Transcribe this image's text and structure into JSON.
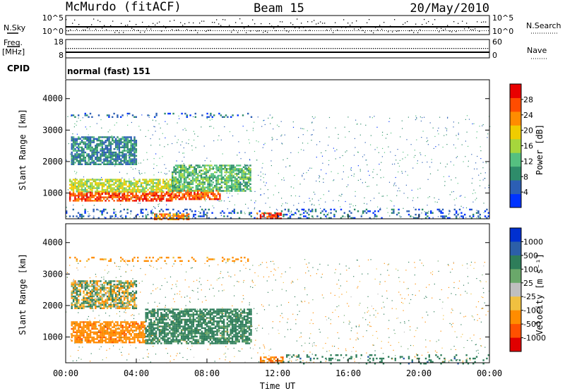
{
  "header": {
    "station": "McMurdo (fitACF)",
    "beam": "Beam 15",
    "date": "20/May/2010",
    "cpid_label": "CPID",
    "cpid_value": "normal (fast) 151"
  },
  "top_panels": {
    "nsky": {
      "label": "N.Sky",
      "ticks": [
        "10^5",
        "10^0"
      ]
    },
    "nsearch": {
      "label": "N.Search",
      "ticks": [
        "10^5",
        "10^0"
      ]
    },
    "freq": {
      "label_line1": "Freq.",
      "label_line2": "[MHz]",
      "ticks": [
        "18",
        "8"
      ]
    },
    "nave": {
      "label": "Nave",
      "ticks": [
        "60",
        "0"
      ]
    }
  },
  "chart_data": [
    {
      "type": "heatmap",
      "quantity": "power",
      "ylabel": "Slant Range [km]",
      "ylim": [
        180,
        4600
      ],
      "yticks": [
        "1000",
        "2000",
        "3000",
        "4000"
      ],
      "colorbar_label": "Power [dB]",
      "colorbar_ticks": [
        "4",
        "8",
        "12",
        "16",
        "20",
        "24",
        "28"
      ],
      "colorbar_range": [
        0,
        32
      ],
      "colorbar_colors": [
        "#0033ff",
        "#2c5fb4",
        "#2e8c6a",
        "#55c080",
        "#a6d63c",
        "#f0cc00",
        "#ff8c00",
        "#ff4c00",
        "#e80000"
      ],
      "regions": [
        {
          "t": [
            0.2,
            6.0
          ],
          "r": [
            750,
            1050
          ],
          "level": 27
        },
        {
          "t": [
            0.2,
            6.5
          ],
          "r": [
            1050,
            1450
          ],
          "level": 17
        },
        {
          "t": [
            6.0,
            8.7
          ],
          "r": [
            800,
            1100
          ],
          "level": 26
        },
        {
          "t": [
            6.0,
            10.5
          ],
          "r": [
            1050,
            1900
          ],
          "level": 12
        },
        {
          "t": [
            0.3,
            4.0
          ],
          "r": [
            1900,
            2800
          ],
          "level": 8
        },
        {
          "t": [
            0.2,
            10.5
          ],
          "r": [
            3400,
            3550
          ],
          "level": 5
        },
        {
          "t": [
            5.0,
            7.0
          ],
          "r": [
            180,
            350
          ],
          "level": 24
        },
        {
          "t": [
            10.8,
            12.2
          ],
          "r": [
            180,
            380
          ],
          "level": 28
        },
        {
          "t": [
            0.0,
            24.0
          ],
          "r": [
            180,
            500
          ],
          "level": 5
        }
      ]
    },
    {
      "type": "heatmap",
      "quantity": "velocity",
      "ylabel": "Slant Range [km]",
      "xlabel": "Time UT",
      "xlim": [
        0,
        24
      ],
      "xticks": [
        "00:00",
        "04:00",
        "08:00",
        "12:00",
        "16:00",
        "20:00",
        "00:00"
      ],
      "ylim": [
        180,
        4600
      ],
      "yticks": [
        "1000",
        "2000",
        "3000",
        "4000"
      ],
      "colorbar_label": "Velocity [m s⁻¹]",
      "colorbar_ticks": [
        "1000",
        "500",
        "100",
        "25",
        "-25",
        "-100",
        "-500",
        "-1000"
      ],
      "colorbar_colors": [
        "#0030d0",
        "#2c5fa8",
        "#2e7d5a",
        "#6aa86a",
        "#bfbfbf",
        "#f0c040",
        "#ff8c00",
        "#ff5000",
        "#e00000"
      ],
      "regions": [
        {
          "t": [
            0.3,
            4.5
          ],
          "r": [
            800,
            1500
          ],
          "level": -200
        },
        {
          "t": [
            4.5,
            10.5
          ],
          "r": [
            800,
            1900
          ],
          "level": 150
        },
        {
          "t": [
            0.3,
            4.0
          ],
          "r": [
            1900,
            2800
          ],
          "level": 10
        },
        {
          "t": [
            0.2,
            10.5
          ],
          "r": [
            3400,
            3550
          ],
          "level": -150
        },
        {
          "t": [
            11.0,
            12.3
          ],
          "r": [
            180,
            380
          ],
          "level": -250
        },
        {
          "t": [
            12.0,
            24.0
          ],
          "r": [
            180,
            450
          ],
          "level": 200
        }
      ]
    }
  ]
}
